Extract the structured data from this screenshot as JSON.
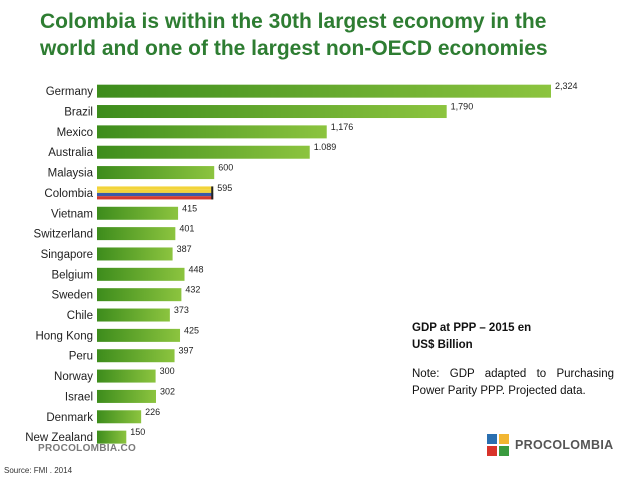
{
  "title": "Colombia is within the 30th largest economy in the world and one of the largest non-OECD economies",
  "note": {
    "title_line1": "GDP at PPP – 2015 en",
    "title_line2": "US$ Billion",
    "text": "Note: GDP adapted to Purchasing Power Parity PPP. Projected data."
  },
  "footer": {
    "left_logo": "PROCOLOMBIA.CO",
    "source": "Source: FMI . 2014",
    "right_logo": "PROCOLOMBIA"
  },
  "colors": {
    "title": "#2e7d32",
    "bar_light": "#8cc43f",
    "bar_dark": "#3d8c1c",
    "colombia_yellow": "#f2d43a",
    "colombia_blue": "#3a5aa8",
    "colombia_red": "#d23a2e"
  },
  "chart_data": {
    "type": "bar",
    "orientation": "horizontal",
    "categories": [
      "Germany",
      "Brazil",
      "Mexico",
      "Australia",
      "Malaysia",
      "Colombia",
      "Vietnam",
      "Switzerland",
      "Singapore",
      "Belgium",
      "Sweden",
      "Chile",
      "Hong Kong",
      "Peru",
      "Norway",
      "Israel",
      "Denmark",
      "New Zealand"
    ],
    "values": [
      2324,
      1790,
      1176,
      1089,
      600,
      595,
      415,
      401,
      387,
      448,
      432,
      373,
      425,
      397,
      300,
      302,
      226,
      150
    ],
    "value_labels": [
      "2,324",
      "1,790",
      "1,176",
      "1.089",
      "600",
      "595",
      "415",
      "401",
      "387",
      "448",
      "432",
      "373",
      "425",
      "397",
      "300",
      "302",
      "226",
      "150"
    ],
    "highlight": "Colombia",
    "xlim": [
      0,
      2324
    ]
  }
}
